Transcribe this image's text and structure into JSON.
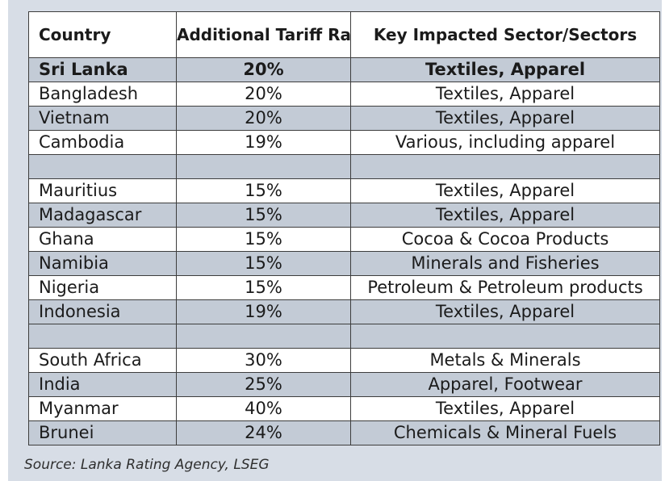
{
  "table": {
    "headers": [
      "Country",
      "Additional Tariff Rate",
      "Key Impacted Sector/Sectors"
    ],
    "rows": [
      {
        "country": "Sri Lanka",
        "rate": "20%",
        "sector": "Textiles, Apparel",
        "bold": true,
        "shade": "grey"
      },
      {
        "country": "Bangladesh",
        "rate": "20%",
        "sector": "Textiles, Apparel",
        "shade": "white"
      },
      {
        "country": "Vietnam",
        "rate": "20%",
        "sector": "Textiles, Apparel",
        "shade": "grey"
      },
      {
        "country": "Cambodia",
        "rate": "19%",
        "sector": "Various, including apparel",
        "shade": "white"
      },
      {
        "country": "",
        "rate": "",
        "sector": "",
        "shade": "grey"
      },
      {
        "country": "Mauritius",
        "rate": "15%",
        "sector": "Textiles, Apparel",
        "shade": "white"
      },
      {
        "country": "Madagascar",
        "rate": "15%",
        "sector": "Textiles, Apparel",
        "shade": "grey"
      },
      {
        "country": "Ghana",
        "rate": "15%",
        "sector": "Cocoa & Cocoa Products",
        "shade": "white"
      },
      {
        "country": "Namibia",
        "rate": "15%",
        "sector": "Minerals and Fisheries",
        "shade": "grey"
      },
      {
        "country": "Nigeria",
        "rate": "15%",
        "sector": "Petroleum & Petroleum products",
        "shade": "white"
      },
      {
        "country": "Indonesia",
        "rate": "19%",
        "sector": "Textiles, Apparel",
        "shade": "grey"
      },
      {
        "country": "",
        "rate": "",
        "sector": "",
        "shade": "grey"
      },
      {
        "country": "South Africa",
        "rate": "30%",
        "sector": "Metals & Minerals",
        "shade": "white"
      },
      {
        "country": "India",
        "rate": "25%",
        "sector": "Apparel, Footwear",
        "shade": "grey"
      },
      {
        "country": "Myanmar",
        "rate": "40%",
        "sector": "Textiles, Apparel",
        "shade": "white"
      },
      {
        "country": "Brunei",
        "rate": "24%",
        "sector": "Chemicals & Mineral Fuels",
        "shade": "grey"
      }
    ]
  },
  "source": "Source: Lanka Rating Agency, LSEG",
  "colors": {
    "header_bg": "#ffffff",
    "row_grey": "#c3cbd6",
    "row_white": "#ffffff",
    "frame_bg": "#d7dde6"
  }
}
